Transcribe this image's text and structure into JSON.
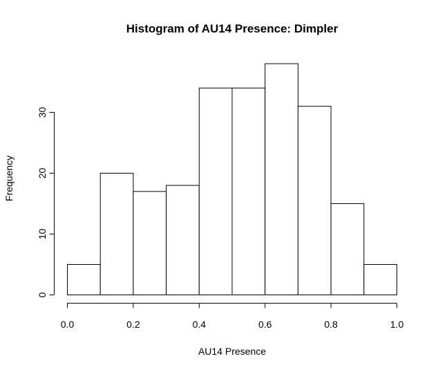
{
  "chart_data": {
    "type": "bar",
    "title": "Histogram of AU14 Presence: Dimpler",
    "xlabel": "AU14 Presence",
    "ylabel": "Frequency",
    "bins": [
      {
        "from": 0.0,
        "to": 0.1,
        "count": 5
      },
      {
        "from": 0.1,
        "to": 0.2,
        "count": 20
      },
      {
        "from": 0.2,
        "to": 0.3,
        "count": 17
      },
      {
        "from": 0.3,
        "to": 0.4,
        "count": 18
      },
      {
        "from": 0.4,
        "to": 0.5,
        "count": 34
      },
      {
        "from": 0.5,
        "to": 0.6,
        "count": 34
      },
      {
        "from": 0.6,
        "to": 0.7,
        "count": 38
      },
      {
        "from": 0.7,
        "to": 0.8,
        "count": 31
      },
      {
        "from": 0.8,
        "to": 0.9,
        "count": 15
      },
      {
        "from": 0.9,
        "to": 1.0,
        "count": 5
      }
    ],
    "xlim": [
      0,
      1
    ],
    "ylim": [
      0,
      38
    ],
    "xticks": [
      "0.0",
      "0.2",
      "0.4",
      "0.6",
      "0.8",
      "1.0"
    ],
    "yticks": [
      "0",
      "10",
      "20",
      "30"
    ],
    "grid": false,
    "colors": {
      "bar_fill": "#ffffff",
      "bar_stroke": "#000000"
    }
  }
}
